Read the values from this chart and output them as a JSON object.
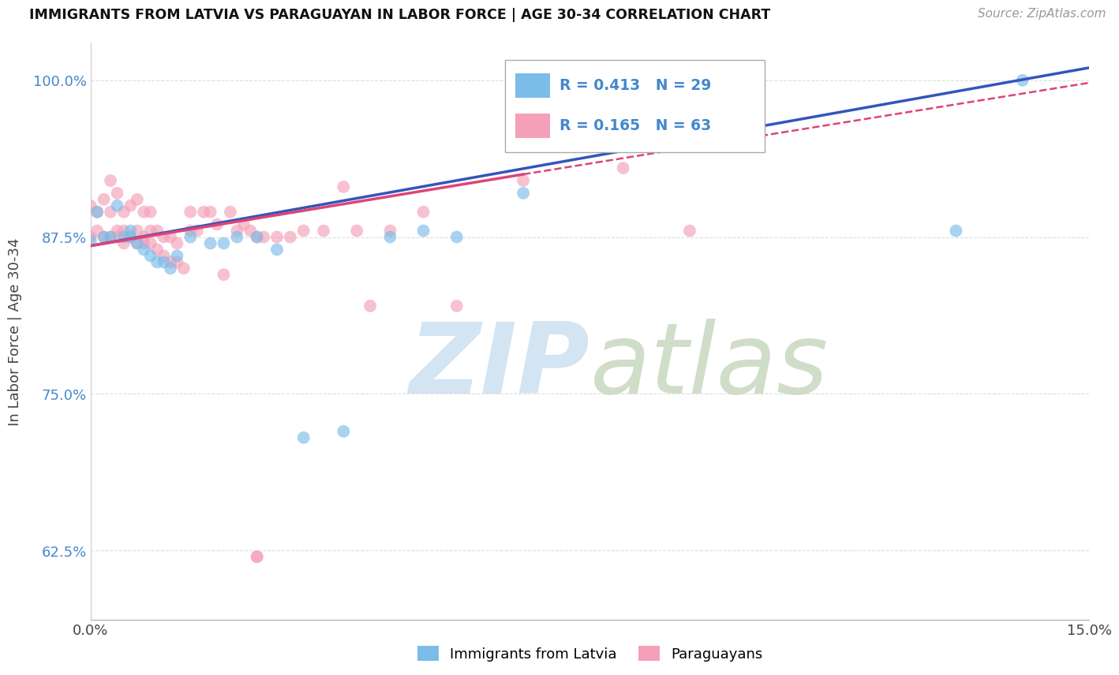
{
  "title": "IMMIGRANTS FROM LATVIA VS PARAGUAYAN IN LABOR FORCE | AGE 30-34 CORRELATION CHART",
  "source_text": "Source: ZipAtlas.com",
  "ylabel": "In Labor Force | Age 30-34",
  "xlim": [
    0.0,
    0.15
  ],
  "ylim": [
    0.57,
    1.03
  ],
  "ytick_labels": [
    "62.5%",
    "75.0%",
    "87.5%",
    "100.0%"
  ],
  "ytick_values": [
    0.625,
    0.75,
    0.875,
    1.0
  ],
  "xtick_labels": [
    "0.0%",
    "15.0%"
  ],
  "xtick_values": [
    0.0,
    0.15
  ],
  "blue_color": "#7bbce8",
  "pink_color": "#f4a0b8",
  "line_blue": "#3355bb",
  "line_pink": "#dd4477",
  "watermark_zip_color": "#cce0f0",
  "watermark_atlas_color": "#c8d8c0",
  "background_color": "#ffffff",
  "grid_color": "#dddddd",
  "blue_x": [
    0.0,
    0.001,
    0.002,
    0.003,
    0.004,
    0.005,
    0.006,
    0.006,
    0.007,
    0.008,
    0.009,
    0.01,
    0.011,
    0.012,
    0.013,
    0.015,
    0.018,
    0.02,
    0.022,
    0.025,
    0.028,
    0.032,
    0.038,
    0.045,
    0.05,
    0.055,
    0.065,
    0.13,
    0.14
  ],
  "blue_y": [
    0.872,
    0.895,
    0.875,
    0.875,
    0.9,
    0.875,
    0.88,
    0.875,
    0.87,
    0.865,
    0.86,
    0.855,
    0.855,
    0.85,
    0.86,
    0.875,
    0.87,
    0.87,
    0.875,
    0.875,
    0.865,
    0.715,
    0.72,
    0.875,
    0.88,
    0.875,
    0.91,
    0.88,
    1.0
  ],
  "pink_x": [
    0.0,
    0.0,
    0.001,
    0.001,
    0.002,
    0.002,
    0.003,
    0.003,
    0.003,
    0.004,
    0.004,
    0.004,
    0.005,
    0.005,
    0.005,
    0.006,
    0.006,
    0.007,
    0.007,
    0.007,
    0.008,
    0.008,
    0.008,
    0.009,
    0.009,
    0.009,
    0.01,
    0.01,
    0.011,
    0.011,
    0.012,
    0.012,
    0.013,
    0.013,
    0.014,
    0.015,
    0.015,
    0.016,
    0.017,
    0.018,
    0.019,
    0.02,
    0.021,
    0.022,
    0.023,
    0.024,
    0.025,
    0.026,
    0.028,
    0.03,
    0.032,
    0.035,
    0.038,
    0.04,
    0.042,
    0.045,
    0.05,
    0.055,
    0.065,
    0.08,
    0.09,
    0.025,
    0.025
  ],
  "pink_y": [
    0.9,
    0.875,
    0.895,
    0.88,
    0.905,
    0.875,
    0.92,
    0.895,
    0.875,
    0.91,
    0.88,
    0.875,
    0.895,
    0.88,
    0.87,
    0.9,
    0.875,
    0.905,
    0.88,
    0.87,
    0.895,
    0.875,
    0.87,
    0.895,
    0.88,
    0.87,
    0.88,
    0.865,
    0.875,
    0.86,
    0.875,
    0.855,
    0.87,
    0.855,
    0.85,
    0.895,
    0.88,
    0.88,
    0.895,
    0.895,
    0.885,
    0.845,
    0.895,
    0.88,
    0.885,
    0.88,
    0.875,
    0.875,
    0.875,
    0.875,
    0.88,
    0.88,
    0.915,
    0.88,
    0.82,
    0.88,
    0.895,
    0.82,
    0.92,
    0.93,
    0.88,
    0.62,
    0.62
  ],
  "line_blue_x0": 0.0,
  "line_blue_y0": 0.868,
  "line_blue_x1": 0.15,
  "line_blue_y1": 1.01,
  "line_pink_x0": 0.0,
  "line_pink_y0": 0.868,
  "line_pink_x1": 0.065,
  "line_pink_y1": 0.925,
  "line_pink_dash_x0": 0.065,
  "line_pink_dash_y0": 0.925,
  "line_pink_dash_x1": 0.15,
  "line_pink_dash_y1": 0.998
}
